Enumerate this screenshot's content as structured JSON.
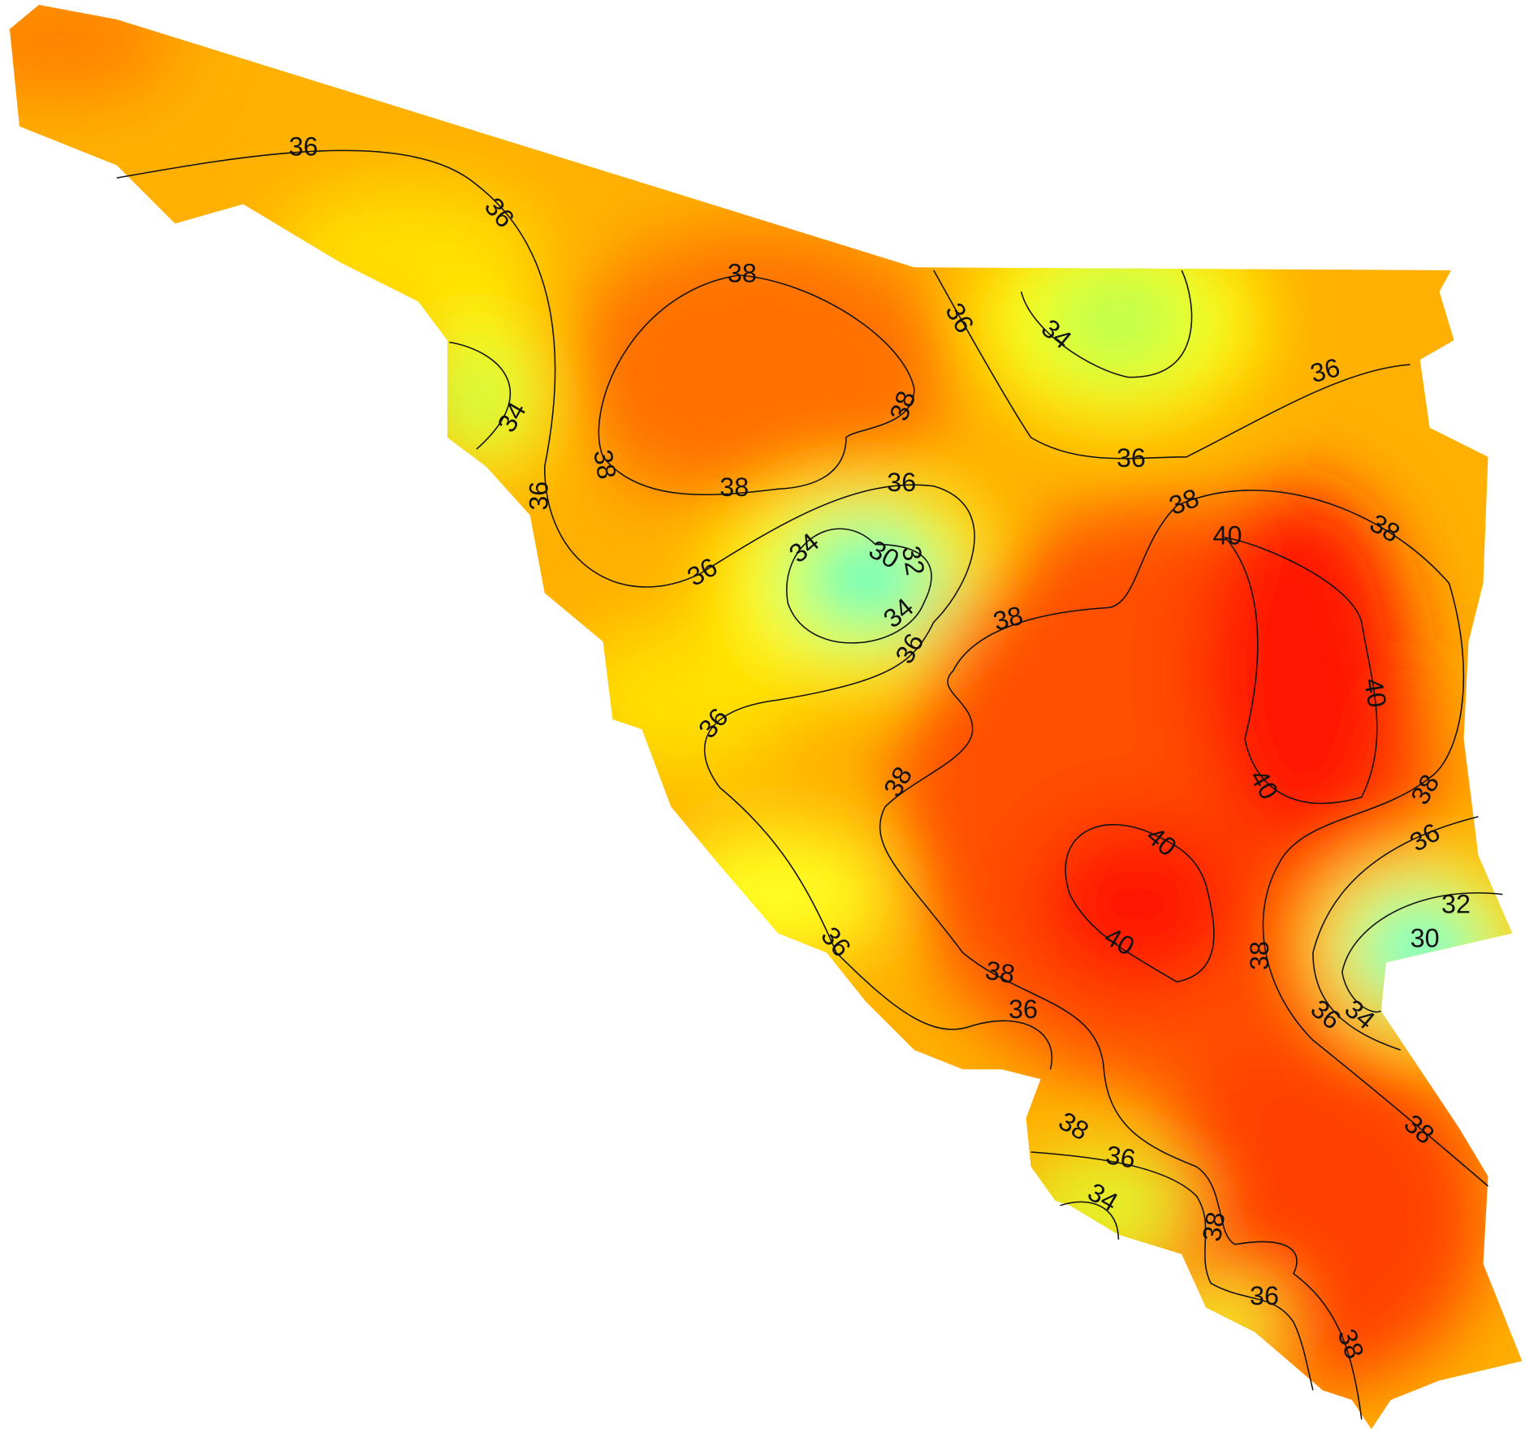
{
  "map": {
    "contour_labels": [
      36,
      36,
      38,
      36,
      34,
      34,
      38,
      38,
      38,
      36,
      36,
      36,
      36,
      38,
      40,
      38,
      34,
      30,
      32,
      36,
      34,
      38,
      36,
      40,
      36,
      38,
      40,
      38,
      40,
      36,
      32,
      30,
      38,
      36,
      40,
      38,
      36,
      34,
      36,
      38,
      38,
      36,
      34,
      38,
      36,
      38
    ]
  }
}
